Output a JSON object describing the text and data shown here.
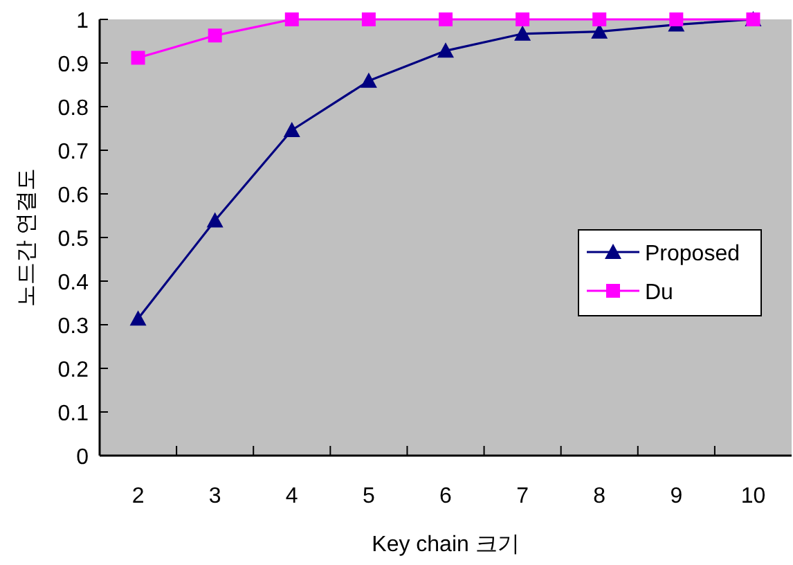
{
  "chart_data": {
    "type": "line",
    "xlabel": "Key chain 크기",
    "ylabel": "노드간 연결도",
    "categories": [
      "2",
      "3",
      "4",
      "5",
      "6",
      "7",
      "8",
      "9",
      "10"
    ],
    "series": [
      {
        "name": "Proposed",
        "color": "#000080",
        "marker": "triangle",
        "values": [
          0.314,
          0.539,
          0.746,
          0.859,
          0.928,
          0.967,
          0.972,
          0.988,
          1.0
        ]
      },
      {
        "name": "Du",
        "color": "#ff00ff",
        "marker": "square",
        "values": [
          0.912,
          0.963,
          1.0,
          1.0,
          1.0,
          1.0,
          1.0,
          1.0,
          1.0
        ]
      }
    ],
    "ylim": [
      0,
      1
    ],
    "yticks": [
      0,
      0.1,
      0.2,
      0.3,
      0.4,
      0.5,
      0.6,
      0.7,
      0.8,
      0.9,
      1
    ],
    "grid": false,
    "legend": "right"
  }
}
